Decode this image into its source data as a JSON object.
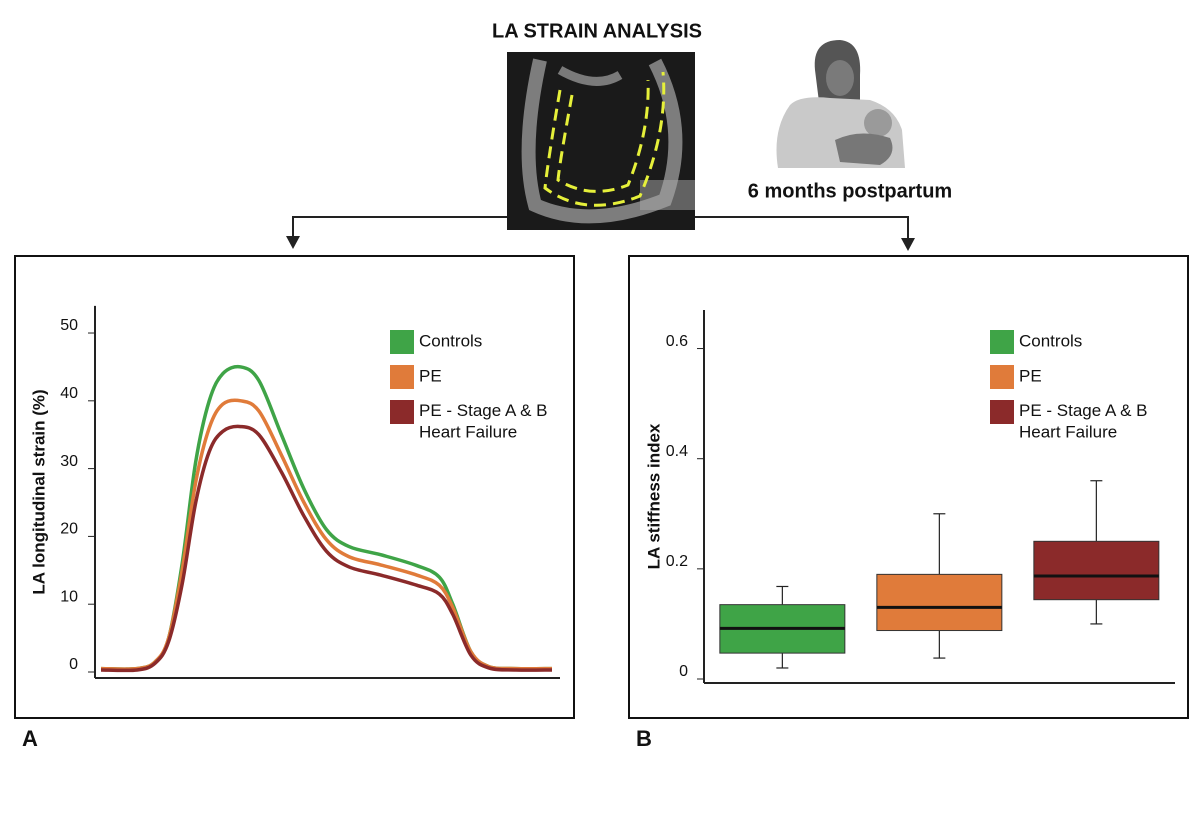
{
  "header": {
    "title": "LA STRAIN ANALYSIS",
    "subtitle": "6 months postpartum"
  },
  "panels": [
    "A",
    "B"
  ],
  "chart_data": [
    {
      "type": "line",
      "ylabel": "LA longitudinal strain (%)",
      "x": [
        0,
        8,
        12,
        15,
        18,
        21,
        24,
        27,
        31,
        35,
        40,
        45,
        50,
        55,
        62,
        70,
        75,
        78,
        82,
        86,
        92,
        100
      ],
      "xlim": [
        0,
        100
      ],
      "ylim": [
        0,
        54
      ],
      "yticks": [
        0,
        10,
        20,
        30,
        40,
        50
      ],
      "legend": "upper right",
      "series": [
        {
          "name": "Controls",
          "color": "#3fa447",
          "values": [
            0.5,
            0.5,
            1.5,
            5,
            16,
            31,
            40,
            44,
            45,
            43,
            35,
            27,
            21,
            18.5,
            17.3,
            15.7,
            14,
            10,
            3,
            0.8,
            0.5,
            0.5
          ]
        },
        {
          "name": "PE",
          "color": "#e07b3a",
          "values": [
            0.5,
            0.5,
            1.5,
            5,
            15,
            28,
            36,
            39.5,
            40,
            38.5,
            32,
            25,
            19.5,
            17,
            15.8,
            14.3,
            12.8,
            9.5,
            3,
            0.8,
            0.5,
            0.5
          ]
        },
        {
          "name": "PE - Stage A & B\nHeart Failure",
          "color": "#8b2a2a",
          "values": [
            0.3,
            0.3,
            1.3,
            4.5,
            13,
            25,
            32.5,
            35.5,
            36.2,
            35,
            29.5,
            23,
            17.8,
            15.5,
            14.3,
            12.8,
            11.5,
            8.5,
            2.5,
            0.6,
            0.3,
            0.3
          ]
        }
      ]
    },
    {
      "type": "box",
      "ylabel": "LA stiffness index",
      "ylim": [
        0,
        0.67
      ],
      "yticks": [
        0,
        0.2,
        0.4,
        0.6
      ],
      "legend": "upper right",
      "series": [
        {
          "name": "Controls",
          "color": "#3fa447",
          "min": 0.02,
          "q1": 0.047,
          "median": 0.092,
          "q3": 0.135,
          "max": 0.168
        },
        {
          "name": "PE",
          "color": "#e07b3a",
          "min": 0.038,
          "q1": 0.088,
          "median": 0.13,
          "q3": 0.19,
          "max": 0.3
        },
        {
          "name": "PE - Stage A & B\nHeart Failure",
          "color": "#8b2a2a",
          "min": 0.1,
          "q1": 0.144,
          "median": 0.187,
          "q3": 0.25,
          "max": 0.36
        }
      ]
    }
  ]
}
